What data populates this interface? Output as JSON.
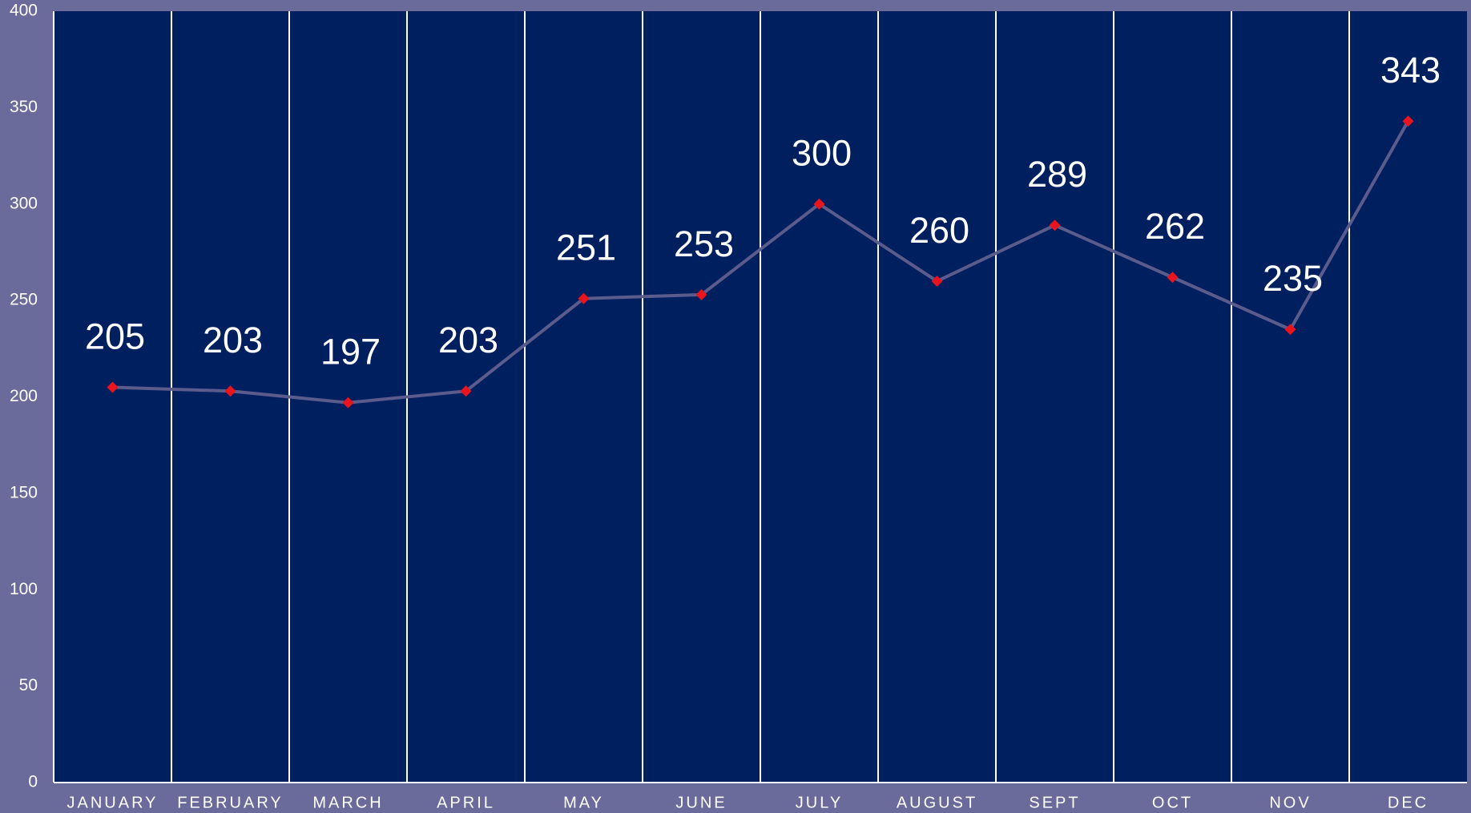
{
  "chart_data": {
    "type": "line",
    "categories": [
      "JANUARY",
      "FEBRUARY",
      "MARCH",
      "APRIL",
      "MAY",
      "JUNE",
      "JULY",
      "AUGUST",
      "SEPT",
      "OCT",
      "NOV",
      "DEC"
    ],
    "values": [
      205,
      203,
      197,
      203,
      251,
      253,
      300,
      260,
      289,
      262,
      235,
      343
    ],
    "color": "#5b5b8c",
    "marker_color": "#e8141e",
    "plot_background": "#001f5f",
    "ylim": [
      0,
      400
    ],
    "yticks": [
      0,
      50,
      100,
      150,
      200,
      250,
      300,
      350,
      400
    ],
    "category_grid": true
  }
}
